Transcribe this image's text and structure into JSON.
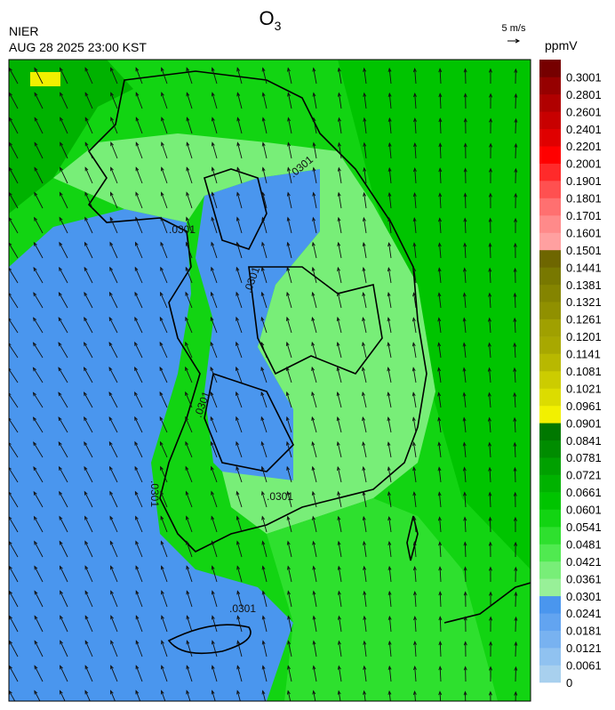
{
  "header": {
    "title": "O",
    "title_subscript": "3",
    "agency": "NIER",
    "timestamp": "AUG 28 2025 23:00 KST",
    "wind_scale": "5 m/s"
  },
  "legend": {
    "unit": "ppmV",
    "labels": [
      "0",
      "0.0061",
      "0.0121",
      "0.0181",
      "0.0241",
      "0.0301",
      "0.0361",
      "0.0421",
      "0.0481",
      "0.0541",
      "0.0601",
      "0.0661",
      "0.0721",
      "0.0781",
      "0.0841",
      "0.0901",
      "0.0961",
      "0.1021",
      "0.1081",
      "0.1141",
      "0.1201",
      "0.1261",
      "0.1321",
      "0.1381",
      "0.1441",
      "0.1501",
      "0.1601",
      "0.1701",
      "0.1801",
      "0.1901",
      "0.2001",
      "0.2201",
      "0.2401",
      "0.2601",
      "0.2801",
      "0.3001"
    ],
    "colors": [
      "#a8d0ee",
      "#90c2f0",
      "#78b2f0",
      "#62a4f0",
      "#4a96ee",
      "#98f098",
      "#78ee78",
      "#50ea50",
      "#2ee02e",
      "#12d412",
      "#00c400",
      "#00b200",
      "#00a000",
      "#008c00",
      "#007800",
      "#f2f000",
      "#dcdc00",
      "#cccc00",
      "#b8b800",
      "#a8a800",
      "#a0a000",
      "#909000",
      "#848400",
      "#787800",
      "#6e6600",
      "#ffa0a0",
      "#ff8a8a",
      "#ff7070",
      "#ff5050",
      "#ff2a2a",
      "#ff0000",
      "#e00000",
      "#c80000",
      "#b00000",
      "#960000",
      "#760000"
    ]
  },
  "map": {
    "contour_labels": [
      ".0301",
      ".0301",
      ".0301",
      ".0301",
      ".0301",
      ".0301",
      ".0301"
    ]
  }
}
